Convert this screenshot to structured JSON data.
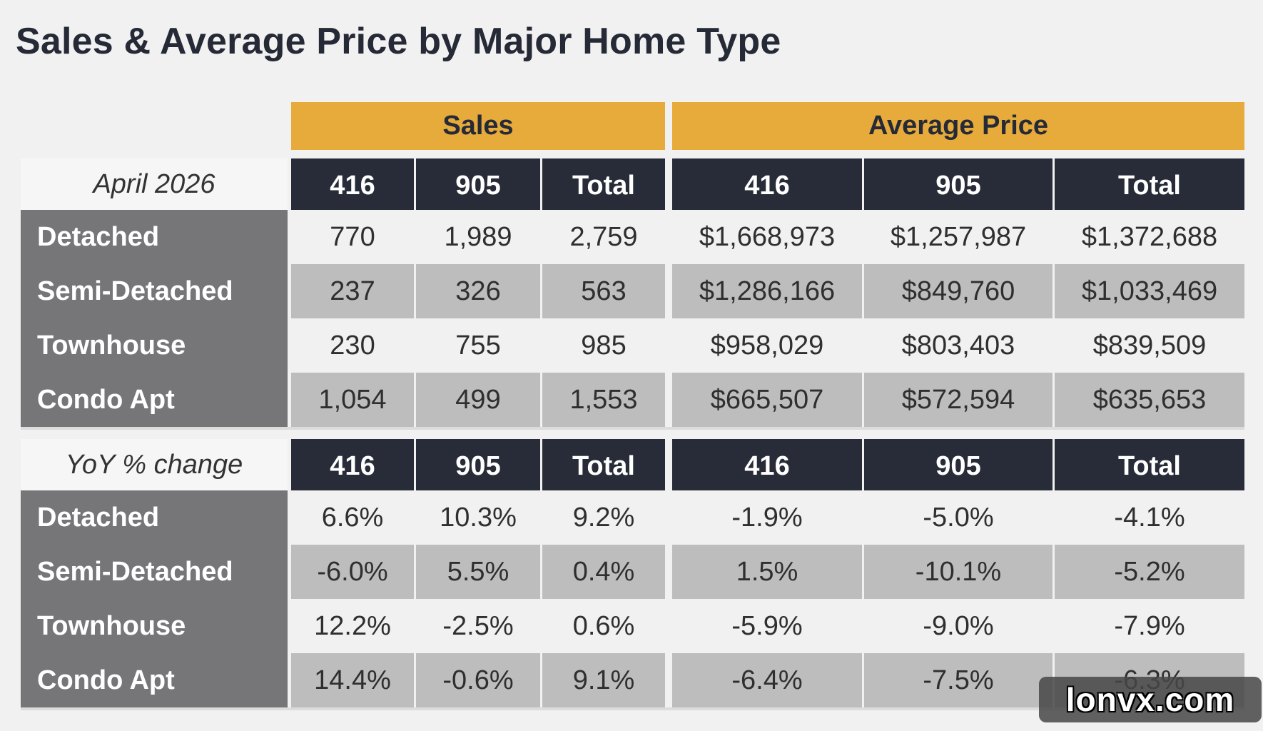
{
  "title": "Sales & Average Price by Major Home Type",
  "chart_data": {
    "type": "table",
    "title": "Sales & Average Price by Major Home Type",
    "group_headers": [
      "Sales",
      "Average Price"
    ],
    "column_headers": [
      "416",
      "905",
      "Total",
      "416",
      "905",
      "Total"
    ],
    "tables": [
      {
        "corner": "April 2026",
        "rows": [
          {
            "label": "Detached",
            "values": [
              "770",
              "1,989",
              "2,759",
              "$1,668,973",
              "$1,257,987",
              "$1,372,688"
            ]
          },
          {
            "label": "Semi-Detached",
            "values": [
              "237",
              "326",
              "563",
              "$1,286,166",
              "$849,760",
              "$1,033,469"
            ]
          },
          {
            "label": "Townhouse",
            "values": [
              "230",
              "755",
              "985",
              "$958,029",
              "$803,403",
              "$839,509"
            ]
          },
          {
            "label": "Condo Apt",
            "values": [
              "1,054",
              "499",
              "1,553",
              "$665,507",
              "$572,594",
              "$635,653"
            ]
          }
        ]
      },
      {
        "corner": "YoY % change",
        "rows": [
          {
            "label": "Detached",
            "values": [
              "6.6%",
              "10.3%",
              "9.2%",
              "-1.9%",
              "-5.0%",
              "-4.1%"
            ]
          },
          {
            "label": "Semi-Detached",
            "values": [
              "-6.0%",
              "5.5%",
              "0.4%",
              "1.5%",
              "-10.1%",
              "-5.2%"
            ]
          },
          {
            "label": "Townhouse",
            "values": [
              "12.2%",
              "-2.5%",
              "0.6%",
              "-5.9%",
              "-9.0%",
              "-7.9%"
            ]
          },
          {
            "label": "Condo Apt",
            "values": [
              "14.4%",
              "-0.6%",
              "9.1%",
              "-6.4%",
              "-7.5%",
              "-6.3%"
            ]
          }
        ]
      }
    ]
  },
  "watermark": "lonvx.com",
  "colors": {
    "gold": "#e7ab3c",
    "header_dark": "#282c38",
    "row_label": "#767679",
    "cell_light": "#f1f1f1",
    "cell_dark": "#bdbdbd"
  }
}
